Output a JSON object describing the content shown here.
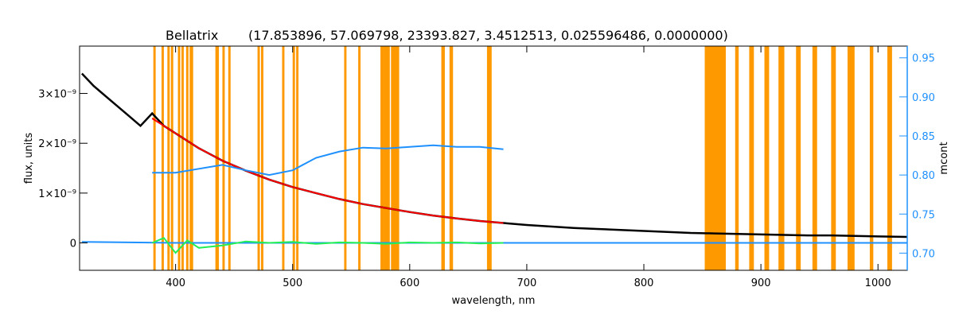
{
  "chart_data": {
    "type": "line",
    "title": "Bellatrix",
    "subtitle": "(17.853896, 57.069798, 23393.827, 3.4512513, 0.025596486, 0.0000000)",
    "xlabel": "wavelength, nm",
    "ylabel": "flux, units",
    "ylabel_right": "mcont",
    "xlim": [
      318,
      1025
    ],
    "ylim": [
      -5.5e-10,
      3.95e-09
    ],
    "ylim_right": [
      0.678,
      0.965
    ],
    "x_ticks": [
      400,
      500,
      600,
      700,
      800,
      900,
      1000
    ],
    "y_ticks": [
      {
        "value": 0,
        "label": "0"
      },
      {
        "value": 1e-09,
        "label": "1×10⁻⁹"
      },
      {
        "value": 2e-09,
        "label": "2×10⁻⁹"
      },
      {
        "value": 3e-09,
        "label": "3×10⁻⁹"
      }
    ],
    "y_ticks_right": [
      0.7,
      0.75,
      0.8,
      0.85,
      0.9,
      0.95
    ],
    "grid": false,
    "legend": "none",
    "masked_bands": [
      [
        381,
        383
      ],
      [
        388,
        390
      ],
      [
        393,
        395
      ],
      [
        396,
        398
      ],
      [
        402,
        404
      ],
      [
        405,
        407
      ],
      [
        409,
        411
      ],
      [
        412,
        415
      ],
      [
        434,
        437
      ],
      [
        440,
        442
      ],
      [
        445,
        447
      ],
      [
        470,
        472
      ],
      [
        473,
        475
      ],
      [
        491,
        493
      ],
      [
        500,
        502
      ],
      [
        503,
        505
      ],
      [
        544,
        546
      ],
      [
        556,
        558
      ],
      [
        575,
        578
      ],
      [
        578,
        583
      ],
      [
        584,
        588
      ],
      [
        587,
        591
      ],
      [
        627,
        630
      ],
      [
        634,
        637
      ],
      [
        666,
        670
      ],
      [
        852,
        870
      ],
      [
        878,
        881
      ],
      [
        890,
        894
      ],
      [
        903,
        907
      ],
      [
        915,
        920
      ],
      [
        930,
        934
      ],
      [
        944,
        948
      ],
      [
        960,
        964
      ],
      [
        974,
        980
      ],
      [
        993,
        996
      ],
      [
        1008,
        1012
      ]
    ],
    "series": [
      {
        "name": "",
        "color": "#000000",
        "axis": "left",
        "x": [
          320,
          330,
          340,
          350,
          360,
          370,
          380,
          390,
          400,
          420,
          440,
          460,
          480,
          500,
          520,
          540,
          560,
          580,
          600,
          620,
          640,
          660,
          680,
          700,
          720,
          740,
          760,
          780,
          800,
          820,
          840,
          860,
          880,
          900,
          920,
          940,
          960,
          980,
          1000,
          1025
        ],
        "y": [
          3.4e-09,
          3.15e-09,
          2.95e-09,
          2.75e-09,
          2.55e-09,
          2.35e-09,
          2.6e-09,
          2.35e-09,
          2.2e-09,
          1.9e-09,
          1.65e-09,
          1.45e-09,
          1.27e-09,
          1.12e-09,
          1e-09,
          8.8e-10,
          7.8e-10,
          7e-10,
          6.2e-10,
          5.5e-10,
          4.9e-10,
          4.4e-10,
          4e-10,
          3.6e-10,
          3.3e-10,
          3e-10,
          2.8e-10,
          2.6e-10,
          2.4e-10,
          2.2e-10,
          2e-10,
          1.9e-10,
          1.8e-10,
          1.7e-10,
          1.6e-10,
          1.5e-10,
          1.5e-10,
          1.4e-10,
          1.3e-10,
          1.2e-10
        ]
      },
      {
        "name": "",
        "color": "#ff0000",
        "axis": "left",
        "x": [
          380,
          400,
          420,
          440,
          460,
          480,
          500,
          520,
          540,
          560,
          580,
          600,
          620,
          640,
          660,
          680
        ],
        "y": [
          2.5e-09,
          2.2e-09,
          1.9e-09,
          1.65e-09,
          1.45e-09,
          1.27e-09,
          1.12e-09,
          1e-09,
          8.8e-10,
          7.8e-10,
          7e-10,
          6.2e-10,
          5.5e-10,
          4.9e-10,
          4.4e-10,
          4e-10
        ]
      },
      {
        "name": "",
        "color": "#1e90ff",
        "axis": "right",
        "x": [
          380,
          400,
          420,
          440,
          460,
          480,
          500,
          520,
          540,
          560,
          580,
          600,
          620,
          640,
          660,
          680
        ],
        "y": [
          0.803,
          0.803,
          0.808,
          0.813,
          0.806,
          0.8,
          0.806,
          0.822,
          0.83,
          0.835,
          0.834,
          0.836,
          0.838,
          0.836,
          0.836,
          0.833
        ]
      },
      {
        "name": "",
        "color": "#1e90ff",
        "axis": "left",
        "x": [
          320,
          400,
          500,
          600,
          700,
          800,
          900,
          1025
        ],
        "y": [
          2e-11,
          0.0,
          0.0,
          0.0,
          0.0,
          0.0,
          0.0,
          0.0
        ]
      },
      {
        "name": "",
        "color": "#22ee55",
        "axis": "left",
        "x": [
          380,
          390,
          400,
          410,
          420,
          440,
          460,
          480,
          500,
          520,
          540,
          560,
          580,
          600,
          620,
          640,
          660,
          680
        ],
        "y": [
          0.0,
          1e-10,
          -2e-10,
          5e-11,
          -1e-10,
          -5e-11,
          3e-11,
          0.0,
          2e-11,
          -2e-11,
          1e-11,
          0.0,
          -2e-11,
          1e-11,
          0.0,
          1e-11,
          -1e-11,
          0.0
        ]
      }
    ]
  }
}
